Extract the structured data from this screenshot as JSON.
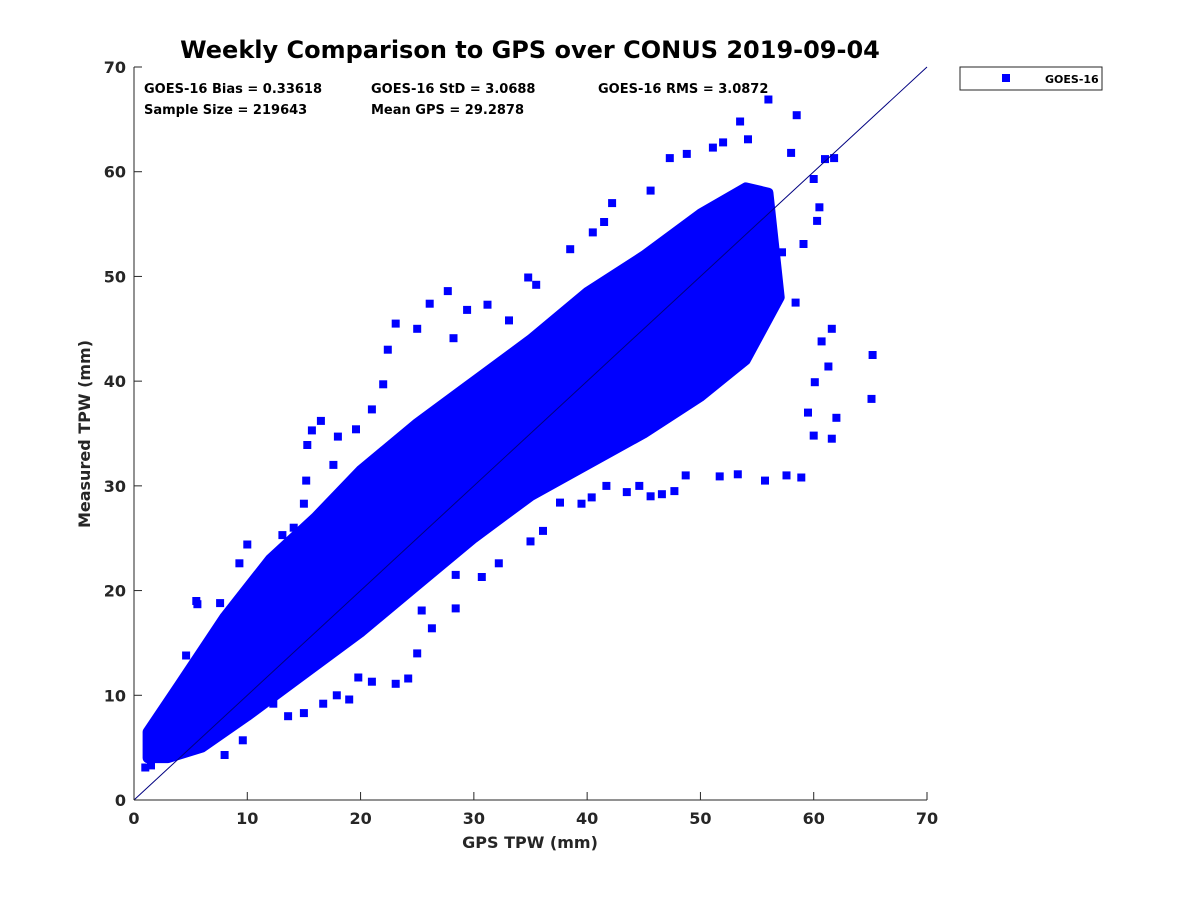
{
  "chart_data": {
    "type": "scatter",
    "title": "Weekly Comparison to GPS over CONUS 2019-09-04",
    "xlabel": "GPS TPW (mm)",
    "ylabel": "Measured TPW (mm)",
    "xlim": [
      0,
      70
    ],
    "ylim": [
      0,
      70
    ],
    "xticks": [
      "0",
      "10",
      "20",
      "30",
      "40",
      "50",
      "60",
      "70"
    ],
    "yticks": [
      "0",
      "10",
      "20",
      "30",
      "40",
      "50",
      "60",
      "70"
    ],
    "grid": false,
    "legend_position": "outside-top-right",
    "marker_color": "#0000ff",
    "reference_line": {
      "from": [
        0,
        0
      ],
      "to": [
        70,
        70
      ],
      "color": "#000080"
    },
    "stats": {
      "bias": "GOES-16 Bias = 0.33618",
      "std": "GOES-16 StD = 3.0688",
      "rms": "GOES-16 RMS = 3.0872",
      "sample_size": "Sample Size = 219643",
      "mean_gps": "Mean GPS = 29.2878"
    },
    "series": [
      {
        "name": "GOES-16",
        "color": "#0000ff",
        "points": [
          [
            1.0,
            3.1
          ],
          [
            1.5,
            3.3
          ],
          [
            1.2,
            5.8
          ],
          [
            2.1,
            4.3
          ],
          [
            2.5,
            7.9
          ],
          [
            3.0,
            6.8
          ],
          [
            3.7,
            8.2
          ],
          [
            4.3,
            9.8
          ],
          [
            4.6,
            13.8
          ],
          [
            5.3,
            12.4
          ],
          [
            5.6,
            18.7
          ],
          [
            5.5,
            19.0
          ],
          [
            7.6,
            18.8
          ],
          [
            8.5,
            17.9
          ],
          [
            9.3,
            22.6
          ],
          [
            10.0,
            24.4
          ],
          [
            9.6,
            5.7
          ],
          [
            8.0,
            4.3
          ],
          [
            10.7,
            9.0
          ],
          [
            12.3,
            9.2
          ],
          [
            13.6,
            8.0
          ],
          [
            13.1,
            25.3
          ],
          [
            14.1,
            26.0
          ],
          [
            15.0,
            28.3
          ],
          [
            15.2,
            30.5
          ],
          [
            15.3,
            33.9
          ],
          [
            15.7,
            35.3
          ],
          [
            16.5,
            36.2
          ],
          [
            17.6,
            32.0
          ],
          [
            18.0,
            34.7
          ],
          [
            19.6,
            35.4
          ],
          [
            21.0,
            37.3
          ],
          [
            22.0,
            39.7
          ],
          [
            22.4,
            43.0
          ],
          [
            23.1,
            45.5
          ],
          [
            25.0,
            45.0
          ],
          [
            26.1,
            47.4
          ],
          [
            27.7,
            48.6
          ],
          [
            28.2,
            44.1
          ],
          [
            29.4,
            46.8
          ],
          [
            31.2,
            47.3
          ],
          [
            33.1,
            45.8
          ],
          [
            34.8,
            49.9
          ],
          [
            35.5,
            49.2
          ],
          [
            38.5,
            52.6
          ],
          [
            40.5,
            54.2
          ],
          [
            41.5,
            55.2
          ],
          [
            42.2,
            57.0
          ],
          [
            45.6,
            58.2
          ],
          [
            47.3,
            61.3
          ],
          [
            48.8,
            61.7
          ],
          [
            51.1,
            62.3
          ],
          [
            52.0,
            62.8
          ],
          [
            53.5,
            64.8
          ],
          [
            54.2,
            63.1
          ],
          [
            56.0,
            66.9
          ],
          [
            58.5,
            65.4
          ],
          [
            58.0,
            61.8
          ],
          [
            60.0,
            59.3
          ],
          [
            61.0,
            61.2
          ],
          [
            61.8,
            61.3
          ],
          [
            60.5,
            56.6
          ],
          [
            60.3,
            55.3
          ],
          [
            59.1,
            53.1
          ],
          [
            57.2,
            52.3
          ],
          [
            58.4,
            47.5
          ],
          [
            60.7,
            43.8
          ],
          [
            61.3,
            41.4
          ],
          [
            61.6,
            45.0
          ],
          [
            60.1,
            39.9
          ],
          [
            59.5,
            37.0
          ],
          [
            60.0,
            34.8
          ],
          [
            61.6,
            34.5
          ],
          [
            62.0,
            36.5
          ],
          [
            65.2,
            42.5
          ],
          [
            65.1,
            38.3
          ],
          [
            58.9,
            30.8
          ],
          [
            57.6,
            31.0
          ],
          [
            55.7,
            30.5
          ],
          [
            53.3,
            31.1
          ],
          [
            51.7,
            30.9
          ],
          [
            48.7,
            31.0
          ],
          [
            47.7,
            29.5
          ],
          [
            46.6,
            29.2
          ],
          [
            45.6,
            29.0
          ],
          [
            44.6,
            30.0
          ],
          [
            43.5,
            29.4
          ],
          [
            41.7,
            30.0
          ],
          [
            40.4,
            28.9
          ],
          [
            39.5,
            28.3
          ],
          [
            37.6,
            28.4
          ],
          [
            36.1,
            25.7
          ],
          [
            35.0,
            24.7
          ],
          [
            32.2,
            22.6
          ],
          [
            30.7,
            21.3
          ],
          [
            28.4,
            21.5
          ],
          [
            28.4,
            18.3
          ],
          [
            25.4,
            18.1
          ],
          [
            26.3,
            16.4
          ],
          [
            25.0,
            14.0
          ],
          [
            24.2,
            11.6
          ],
          [
            23.1,
            11.1
          ],
          [
            21.0,
            11.3
          ],
          [
            19.8,
            11.7
          ],
          [
            19.0,
            9.6
          ],
          [
            17.9,
            10.0
          ],
          [
            16.7,
            9.2
          ],
          [
            15.0,
            8.3
          ]
        ]
      }
    ]
  }
}
